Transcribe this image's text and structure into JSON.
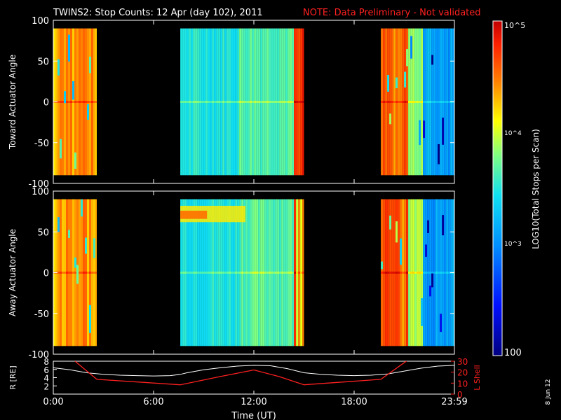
{
  "header": {
    "title": "TWINS2: Stop Counts: 12 Apr (day 102), 2011",
    "note": "NOTE: Data Preliminary - Not validated"
  },
  "colorbar": {
    "label": "LOG10(Total Stops per Scan)",
    "ticks": [
      "10^5",
      "10^4",
      "10^3",
      "100"
    ],
    "scale": "log",
    "range": [
      100,
      100000
    ]
  },
  "stamp": "8 Jun 12",
  "colors": {
    "background": "#000000",
    "note": "#ff2020",
    "lshell": "#ff2020",
    "r_line": "#ffffff"
  },
  "chart_data": [
    {
      "type": "heatmap",
      "ylabel": "Toward Actuator Angle",
      "x_ticks": [
        "0:00",
        "6:00",
        "12:00",
        "18:00",
        "23:59"
      ],
      "y_ticks": [
        "100",
        "50",
        "0",
        "-50",
        "-100"
      ],
      "ylim": [
        -100,
        100
      ],
      "data_range_y": [
        -90,
        90
      ],
      "data_intervals_hours": [
        [
          0,
          2.6
        ],
        [
          7.6,
          15.0
        ],
        [
          19.6,
          24
        ]
      ],
      "colorbar": "log10 counts 100 to 1e5"
    },
    {
      "type": "heatmap",
      "ylabel": "Away Actuator Angle",
      "x_ticks": [
        "0:00",
        "6:00",
        "12:00",
        "18:00",
        "23:59"
      ],
      "y_ticks": [
        "100",
        "50",
        "0",
        "-50",
        "-100"
      ],
      "ylim": [
        -100,
        100
      ],
      "data_range_y": [
        -90,
        90
      ],
      "data_intervals_hours": [
        [
          0,
          2.6
        ],
        [
          7.6,
          15.0
        ],
        [
          19.6,
          24
        ]
      ],
      "colorbar": "log10 counts 100 to 1e5"
    },
    {
      "type": "line",
      "xlabel": "Time (UT)",
      "x_ticks": [
        "0:00",
        "6:00",
        "12:00",
        "18:00",
        "23:59"
      ],
      "ylabel_left": "R [RE]",
      "ylabel_right": "L Shell",
      "left_ticks": [
        "8",
        "6",
        "4",
        "2"
      ],
      "right_ticks": [
        "30",
        "20",
        "10",
        "0"
      ],
      "series": [
        {
          "name": "R [RE]",
          "x": [
            0,
            1,
            2,
            3,
            4,
            5,
            6,
            7,
            7.6,
            8,
            9,
            10,
            11,
            12,
            13,
            14,
            15,
            16,
            17,
            18,
            19,
            20,
            21,
            22,
            23,
            24
          ],
          "y": [
            6.4,
            5.9,
            5.2,
            4.8,
            4.6,
            4.5,
            4.4,
            4.5,
            4.8,
            5.2,
            5.9,
            6.4,
            6.8,
            7.0,
            6.9,
            6.2,
            5.2,
            4.8,
            4.6,
            4.5,
            4.6,
            4.9,
            5.6,
            6.3,
            6.8,
            7.0
          ]
        },
        {
          "name": "L Shell",
          "x": [
            1.3,
            2.6,
            7.6,
            10,
            12,
            13.5,
            15.0,
            19.6,
            21.3
          ],
          "y": [
            30,
            13.5,
            8.5,
            16,
            22,
            16,
            8.5,
            13.5,
            32
          ]
        }
      ],
      "xlim": [
        0,
        24
      ],
      "ylim_left": [
        0,
        8
      ],
      "ylim_right": [
        0,
        30
      ]
    }
  ]
}
